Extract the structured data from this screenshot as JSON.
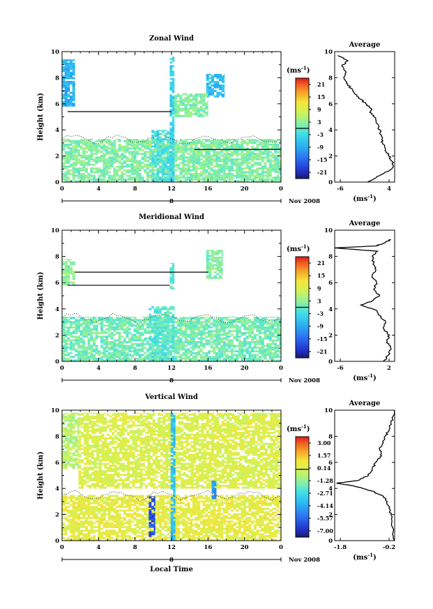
{
  "panels": [
    {
      "id": "zonal",
      "title": "Zonal Wind",
      "colorbar": {
        "unit_base": "(ms",
        "unit_exp": "-1",
        "unit_close": ")",
        "ticks": [
          "21",
          "15",
          "9",
          "3",
          "-3",
          "-9",
          "-15",
          "-21"
        ],
        "range": [
          -24,
          24
        ]
      },
      "average": {
        "title": "Average",
        "xticks": [
          "-6",
          "4"
        ],
        "xlim": [
          -6,
          4
        ],
        "unit_base": "(ms",
        "unit_exp": "-1",
        "unit_close": ")",
        "profile": [
          [
            -0.5,
            0
          ],
          [
            1.5,
            0.5
          ],
          [
            3.5,
            1.0
          ],
          [
            3.8,
            1.5
          ],
          [
            3.0,
            2.0
          ],
          [
            2.5,
            2.5
          ],
          [
            2.0,
            3.0
          ],
          [
            1.8,
            3.5
          ],
          [
            1.5,
            4.0
          ],
          [
            1.0,
            4.5
          ],
          [
            0.6,
            5.0
          ],
          [
            0.0,
            5.3
          ],
          [
            0.2,
            5.6
          ],
          [
            -0.8,
            6.0
          ],
          [
            -2.0,
            6.5
          ],
          [
            -3.0,
            7.0
          ],
          [
            -3.8,
            7.5
          ],
          [
            -4.5,
            8.0
          ],
          [
            -4.2,
            8.5
          ],
          [
            -4.8,
            8.9
          ],
          [
            -3.8,
            9.3
          ],
          [
            -5.5,
            9.7
          ]
        ]
      }
    },
    {
      "id": "meridional",
      "title": "Meridional Wind",
      "colorbar": {
        "unit_base": "(ms",
        "unit_exp": "-1",
        "unit_close": ")",
        "ticks": [
          "21",
          "15",
          "9",
          "3",
          "-3",
          "-9",
          "-15",
          "-21"
        ],
        "range": [
          -24,
          24
        ]
      },
      "average": {
        "title": "Average",
        "xticks": [
          "-6",
          "2"
        ],
        "xlim": [
          -6,
          2
        ],
        "unit_base": "(ms",
        "unit_exp": "-1",
        "unit_close": ")",
        "profile": [
          [
            0.5,
            0
          ],
          [
            1.2,
            0.5
          ],
          [
            1.5,
            1.0
          ],
          [
            1.0,
            1.5
          ],
          [
            1.3,
            2.0
          ],
          [
            0.5,
            2.5
          ],
          [
            0.8,
            3.0
          ],
          [
            0.0,
            3.5
          ],
          [
            -0.5,
            3.9
          ],
          [
            -2.5,
            4.3
          ],
          [
            -1.0,
            4.6
          ],
          [
            0.0,
            5.0
          ],
          [
            -0.8,
            5.5
          ],
          [
            -0.4,
            6.0
          ],
          [
            -1.0,
            6.5
          ],
          [
            -0.5,
            7.0
          ],
          [
            -0.8,
            7.5
          ],
          [
            -1.0,
            8.0
          ],
          [
            -0.3,
            8.4
          ],
          [
            -6.0,
            8.65
          ],
          [
            -0.5,
            8.8
          ],
          [
            0.5,
            9.0
          ],
          [
            1.5,
            9.3
          ]
        ]
      }
    },
    {
      "id": "vertical",
      "title": "Vertical Wind",
      "colorbar": {
        "unit_base": "(ms",
        "unit_exp": "-1",
        "unit_close": ")",
        "ticks": [
          "3.00",
          "1.57",
          "0.14",
          "-1.28",
          "-2.71",
          "-4.14",
          "-5.57",
          "-7.00"
        ],
        "range": [
          -7.7,
          3.7
        ]
      },
      "average": {
        "title": "Average",
        "xticks": [
          "-1.8",
          "-0.2"
        ],
        "xlim": [
          -1.8,
          -0.2
        ],
        "unit_base": "(ms",
        "unit_exp": "-1",
        "unit_close": ")",
        "profile": [
          [
            -0.2,
            0
          ],
          [
            -0.25,
            1.0
          ],
          [
            -0.3,
            2.0
          ],
          [
            -0.35,
            2.5
          ],
          [
            -0.4,
            3.0
          ],
          [
            -0.5,
            3.4
          ],
          [
            -0.8,
            3.8
          ],
          [
            -1.3,
            4.2
          ],
          [
            -1.75,
            4.4
          ],
          [
            -1.2,
            4.6
          ],
          [
            -0.9,
            5.0
          ],
          [
            -0.8,
            5.5
          ],
          [
            -0.7,
            6.0
          ],
          [
            -0.55,
            6.5
          ],
          [
            -0.6,
            7.0
          ],
          [
            -0.5,
            7.5
          ],
          [
            -0.45,
            8.0
          ],
          [
            -0.35,
            8.5
          ],
          [
            -0.3,
            9.0
          ],
          [
            -0.25,
            9.5
          ],
          [
            -0.2,
            10.0
          ]
        ]
      }
    }
  ],
  "shared_axes": {
    "y_label": "Height (km)",
    "y_ticks": [
      "0",
      "2",
      "4",
      "6",
      "8",
      "10"
    ],
    "ylim": [
      0,
      10
    ],
    "x_ticks": [
      "0",
      "4",
      "8",
      "12",
      "16",
      "20",
      "0"
    ],
    "xlim": [
      0,
      24
    ],
    "date_day": "8",
    "date_month": "Nov 2008",
    "x_label": "Local Time"
  },
  "chart_data": [
    {
      "type": "heatmap",
      "title": "Zonal Wind",
      "xlabel": "",
      "ylabel": "Height (km)",
      "xlim": [
        0,
        24
      ],
      "ylim": [
        0,
        10
      ],
      "colorbar_ticks": [
        21,
        15,
        9,
        3,
        -3,
        -9,
        -15,
        -21
      ],
      "boundary_layer_top_km": 3.3,
      "regions": [
        {
          "x": [
            0.0,
            1.4
          ],
          "y": [
            5.8,
            9.4
          ],
          "value": -8
        },
        {
          "x": [
            0.0,
            24.0
          ],
          "y": [
            0.0,
            3.3
          ],
          "value": 2
        },
        {
          "x": [
            9.8,
            12.3
          ],
          "y": [
            0.0,
            4.0
          ],
          "value": -2
        },
        {
          "x": [
            11.8,
            12.3
          ],
          "y": [
            0.0,
            9.6
          ],
          "value": -4
        },
        {
          "x": [
            15.8,
            17.8
          ],
          "y": [
            6.5,
            8.3
          ],
          "value": -7
        },
        {
          "x": [
            12.3,
            16.0
          ],
          "y": [
            5.0,
            6.8
          ],
          "value": 2
        }
      ],
      "lines": [
        {
          "x": [
            0.6,
            12.0
          ],
          "y": [
            5.4,
            5.4
          ]
        },
        {
          "x": [
            14.5,
            24.0
          ],
          "y": [
            2.5,
            2.5
          ]
        }
      ]
    },
    {
      "type": "heatmap",
      "title": "Meridional Wind",
      "xlabel": "",
      "ylabel": "Height (km)",
      "xlim": [
        0,
        24
      ],
      "ylim": [
        0,
        10
      ],
      "colorbar_ticks": [
        21,
        15,
        9,
        3,
        -3,
        -9,
        -15,
        -21
      ],
      "boundary_layer_top_km": 3.3,
      "regions": [
        {
          "x": [
            0.0,
            1.4
          ],
          "y": [
            5.8,
            7.8
          ],
          "value": 3
        },
        {
          "x": [
            0.0,
            24.0
          ],
          "y": [
            0.0,
            3.4
          ],
          "value": 1
        },
        {
          "x": [
            9.5,
            12.3
          ],
          "y": [
            0.0,
            4.2
          ],
          "value": -1
        },
        {
          "x": [
            15.8,
            17.6
          ],
          "y": [
            6.3,
            8.5
          ],
          "value": 2
        },
        {
          "x": [
            11.8,
            12.3
          ],
          "y": [
            5.5,
            7.5
          ],
          "value": 0
        }
      ],
      "lines": [
        {
          "x": [
            1.4,
            16.0
          ],
          "y": [
            6.8,
            6.8
          ]
        },
        {
          "x": [
            0.6,
            11.8
          ],
          "y": [
            5.8,
            5.8
          ]
        }
      ]
    },
    {
      "type": "heatmap",
      "title": "Vertical Wind",
      "xlabel": "Local Time",
      "ylabel": "Height (km)",
      "xlim": [
        0,
        24
      ],
      "ylim": [
        0,
        10
      ],
      "colorbar_ticks": [
        3.0,
        1.57,
        0.14,
        -1.28,
        -2.71,
        -4.14,
        -5.57,
        -7.0
      ],
      "boundary_layer_top_km": 3.5,
      "regions": [
        {
          "x": [
            0.0,
            24.0
          ],
          "y": [
            0.0,
            3.5
          ],
          "value": 0.5
        },
        {
          "x": [
            0.0,
            1.8
          ],
          "y": [
            5.5,
            9.8
          ],
          "value": -0.6
        },
        {
          "x": [
            1.8,
            24.0
          ],
          "y": [
            4.0,
            9.8
          ],
          "value": 0.2
        },
        {
          "x": [
            9.5,
            10.2
          ],
          "y": [
            0.3,
            3.4
          ],
          "value": -6.0
        },
        {
          "x": [
            11.9,
            12.4
          ],
          "y": [
            0.0,
            9.8
          ],
          "value": -3.5
        },
        {
          "x": [
            16.4,
            16.9
          ],
          "y": [
            3.2,
            4.6
          ],
          "value": -4.5
        }
      ]
    },
    {
      "type": "line",
      "title": "Average",
      "subplot_of": "Zonal Wind",
      "xlim": [
        -6,
        4
      ],
      "ylim": [
        0,
        10
      ]
    },
    {
      "type": "line",
      "title": "Average",
      "subplot_of": "Meridional Wind",
      "xlim": [
        -6,
        2
      ],
      "ylim": [
        0,
        10
      ]
    },
    {
      "type": "line",
      "title": "Average",
      "subplot_of": "Vertical Wind",
      "xlim": [
        -1.8,
        -0.2
      ],
      "ylim": [
        0,
        10
      ]
    }
  ]
}
